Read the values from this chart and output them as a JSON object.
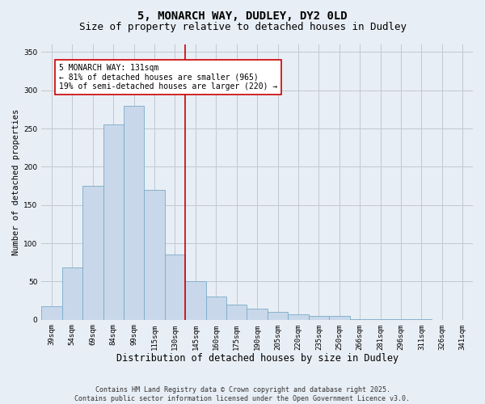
{
  "title1": "5, MONARCH WAY, DUDLEY, DY2 0LD",
  "title2": "Size of property relative to detached houses in Dudley",
  "xlabel": "Distribution of detached houses by size in Dudley",
  "ylabel": "Number of detached properties",
  "categories": [
    "39sqm",
    "54sqm",
    "69sqm",
    "84sqm",
    "99sqm",
    "115sqm",
    "130sqm",
    "145sqm",
    "160sqm",
    "175sqm",
    "190sqm",
    "205sqm",
    "220sqm",
    "235sqm",
    "250sqm",
    "266sqm",
    "281sqm",
    "296sqm",
    "311sqm",
    "326sqm",
    "341sqm"
  ],
  "values": [
    18,
    68,
    175,
    255,
    280,
    170,
    85,
    50,
    30,
    20,
    14,
    10,
    7,
    5,
    5,
    1,
    1,
    1,
    1,
    0,
    0
  ],
  "bar_color": "#c8d8ea",
  "bar_edge_color": "#7aaac8",
  "vline_x_index": 6.5,
  "vline_color": "#cc0000",
  "annotation_text": "5 MONARCH WAY: 131sqm\n← 81% of detached houses are smaller (965)\n19% of semi-detached houses are larger (220) →",
  "annotation_box_color": "#ffffff",
  "annotation_box_edge": "#cc0000",
  "ylim": [
    0,
    360
  ],
  "yticks": [
    0,
    50,
    100,
    150,
    200,
    250,
    300,
    350
  ],
  "fig_background_color": "#e8eef5",
  "plot_background": "#e8eef5",
  "grid_color": "#c0c8d0",
  "footer_text": "Contains HM Land Registry data © Crown copyright and database right 2025.\nContains public sector information licensed under the Open Government Licence v3.0.",
  "title1_fontsize": 10,
  "title2_fontsize": 9,
  "xlabel_fontsize": 8.5,
  "ylabel_fontsize": 7.5,
  "tick_fontsize": 6.5,
  "annotation_fontsize": 7,
  "footer_fontsize": 6
}
